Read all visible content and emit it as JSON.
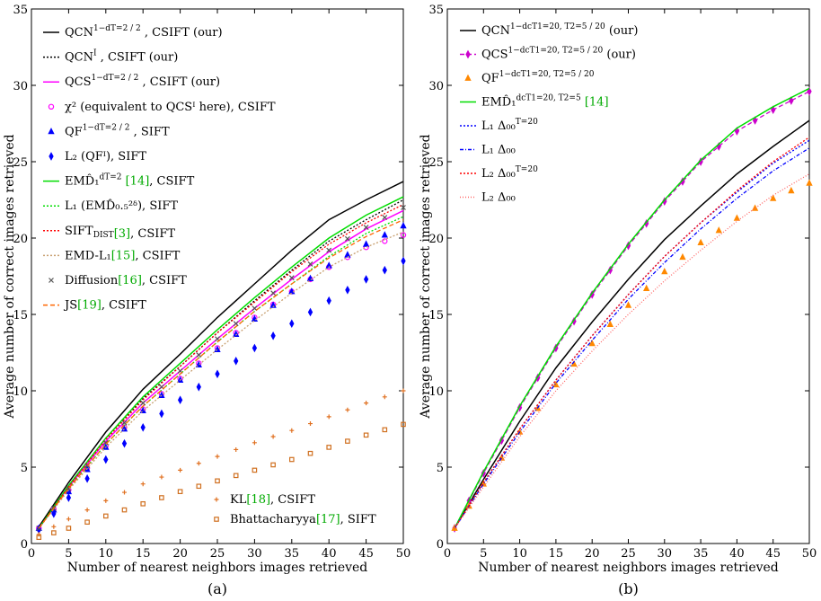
{
  "chart_data": [
    {
      "type": "line",
      "panel_label": "(a)",
      "xlabel": "Number of nearest neighbors images retrieved",
      "ylabel": "Average number of correct images retrieved",
      "xlim": [
        0,
        50
      ],
      "ylim": [
        0,
        35
      ],
      "xticks": [
        0,
        5,
        10,
        15,
        20,
        25,
        30,
        35,
        40,
        45,
        50
      ],
      "yticks": [
        0,
        5,
        10,
        15,
        20,
        25,
        30,
        35
      ],
      "grid": false,
      "legend_placement": "top-left",
      "x": [
        1,
        5,
        10,
        15,
        20,
        25,
        30,
        35,
        40,
        45,
        50
      ],
      "series": [
        {
          "name": "QCN^{1-d_{T=2}/2}, CSIFT (our)",
          "legend": {
            "main": "QCN",
            "sup": "1−",
            "frac": "dT=2 / 2",
            "tail": ", CSIFT (our)",
            "cite": ""
          },
          "color": "#000000",
          "style": "solid",
          "marker": "none",
          "values": [
            1.1,
            4.0,
            7.3,
            10.1,
            12.4,
            14.8,
            17.0,
            19.2,
            21.2,
            22.5,
            23.7
          ]
        },
        {
          "name": "QCN^I, CSIFT (our)",
          "legend": {
            "main": "QCN",
            "sup": "I",
            "frac": "",
            "tail": ", CSIFT (our)",
            "cite": ""
          },
          "color": "#000000",
          "style": "dotted",
          "marker": "none",
          "values": [
            1.0,
            3.8,
            6.9,
            9.5,
            11.6,
            13.8,
            15.9,
            17.9,
            19.8,
            21.2,
            22.5
          ]
        },
        {
          "name": "QCS^{1-d_{T=2}/2}, CSIFT (our)",
          "legend": {
            "main": "QCS",
            "sup": "1−",
            "frac": "dT=2 / 2",
            "tail": ", CSIFT (our)",
            "cite": ""
          },
          "color": "#ff00ff",
          "style": "solid",
          "marker": "none",
          "values": [
            1.0,
            3.7,
            6.7,
            9.2,
            11.3,
            13.4,
            15.4,
            17.3,
            19.1,
            20.6,
            21.8
          ]
        },
        {
          "name": "χ² (equivalent to QCS^I here), CSIFT",
          "legend": {
            "main": "χ²",
            "sup": "",
            "frac": "",
            "tail": "   (equivalent to QCSᴵ here), CSIFT",
            "cite": ""
          },
          "color": "#ff00ff",
          "style": "none",
          "marker": "circle",
          "values": [
            1.0,
            3.5,
            6.4,
            8.8,
            10.8,
            12.8,
            14.8,
            16.5,
            18.1,
            19.4,
            20.2
          ]
        },
        {
          "name": "QF^{1-d_{T=2}/2}, SIFT",
          "legend": {
            "main": "QF",
            "sup": "1−",
            "frac": "dT=2 / 2",
            "tail": ", SIFT",
            "cite": ""
          },
          "color": "#0000ff",
          "style": "none",
          "marker": "triangle",
          "values": [
            1.0,
            3.4,
            6.3,
            8.7,
            10.7,
            12.7,
            14.7,
            16.5,
            18.2,
            19.6,
            20.8
          ]
        },
        {
          "name": "L_2 (QF^I), SIFT",
          "legend": {
            "main": "L₂",
            "sup": "",
            "frac": "",
            "tail": "   (QFᴵ), SIFT",
            "cite": ""
          },
          "color": "#0000ff",
          "style": "none",
          "marker": "diamond",
          "values": [
            0.9,
            3.0,
            5.5,
            7.6,
            9.4,
            11.1,
            12.8,
            14.4,
            15.9,
            17.3,
            18.5
          ]
        },
        {
          "name": "EMD_1^{d_{T=2}} [14], CSIFT",
          "legend": {
            "main": "EMD̂₁",
            "sup": "dT=2",
            "frac": "",
            "tail": " ",
            "cite": "[14]",
            "tail2": ", CSIFT"
          },
          "color": "#00dd00",
          "style": "solid",
          "marker": "none",
          "values": [
            1.0,
            3.8,
            6.9,
            9.6,
            11.8,
            14.0,
            16.1,
            18.1,
            20.0,
            21.5,
            22.7
          ]
        },
        {
          "name": "L_1 (EMD_{0.5}^{2δ}), SIFT",
          "legend": {
            "main": "L₁",
            "sup": "",
            "frac": "",
            "tail": "   (EMD̂₀.₅²ᵟ), SIFT",
            "cite": ""
          },
          "color": "#00dd00",
          "style": "dotted",
          "marker": "none",
          "values": [
            1.0,
            3.6,
            6.5,
            9.0,
            11.1,
            13.2,
            15.2,
            17.0,
            18.8,
            20.3,
            21.4
          ]
        },
        {
          "name": "SIFT_DIST [3], CSIFT",
          "legend": {
            "main": "SIFT",
            "sub": "DIST",
            "sup": "",
            "frac": "",
            "tail": "",
            "cite": "[3]",
            "tail2": ", CSIFT"
          },
          "color": "#ff0000",
          "style": "dotted",
          "marker": "none",
          "values": [
            1.0,
            3.7,
            6.8,
            9.4,
            11.6,
            13.8,
            15.8,
            17.8,
            19.6,
            21.0,
            22.2
          ]
        },
        {
          "name": "EMD-L_1 [15], CSIFT",
          "legend": {
            "main": "EMD-L₁",
            "sup": "",
            "frac": "",
            "tail": "",
            "cite": "[15]",
            "tail2": ", CSIFT"
          },
          "color": "#c8a070",
          "style": "dotted",
          "marker": "none",
          "values": [
            1.0,
            3.5,
            6.3,
            8.7,
            10.7,
            12.7,
            14.6,
            16.4,
            18.1,
            19.4,
            20.4
          ]
        },
        {
          "name": "Diffusion [16], CSIFT",
          "legend": {
            "main": "Diffusion",
            "sup": "",
            "frac": "",
            "tail": "",
            "cite": "[16]",
            "tail2": ", CSIFT"
          },
          "color": "#555555",
          "style": "none",
          "marker": "x",
          "values": [
            1.0,
            3.6,
            6.6,
            9.2,
            11.3,
            13.4,
            15.4,
            17.4,
            19.2,
            20.7,
            22.0
          ]
        },
        {
          "name": "JS [19], CSIFT",
          "legend": {
            "main": "JS",
            "sup": "",
            "frac": "",
            "tail": "",
            "cite": "[19]",
            "tail2": ", CSIFT"
          },
          "color": "#ff6600",
          "style": "dashed",
          "marker": "none",
          "values": [
            1.0,
            3.6,
            6.5,
            9.0,
            11.1,
            13.2,
            15.2,
            17.0,
            18.7,
            20.1,
            21.2
          ]
        },
        {
          "name": "KL [18], CSIFT",
          "legend": {
            "main": "KL",
            "sup": "",
            "frac": "",
            "tail": "",
            "cite": "[18]",
            "tail2": ", CSIFT"
          },
          "color": "#e07020",
          "style": "none",
          "marker": "plus",
          "values": [
            0.6,
            1.6,
            2.8,
            3.9,
            4.8,
            5.7,
            6.6,
            7.4,
            8.3,
            9.2,
            10.0
          ]
        },
        {
          "name": "Bhattacharyya [17], SIFT",
          "legend": {
            "main": "Bhattacharyya",
            "sup": "",
            "frac": "",
            "tail": "",
            "cite": "[17]",
            "tail2": ", SIFT"
          },
          "color": "#d07020",
          "style": "none",
          "marker": "square",
          "values": [
            0.4,
            1.0,
            1.8,
            2.6,
            3.4,
            4.1,
            4.8,
            5.5,
            6.3,
            7.1,
            7.8
          ]
        }
      ]
    },
    {
      "type": "line",
      "panel_label": "(b)",
      "xlabel": "Number of nearest neighbors images retrieved",
      "ylabel": "Average number of correct images retrieved",
      "xlim": [
        0,
        50
      ],
      "ylim": [
        0,
        35
      ],
      "xticks": [
        0,
        5,
        10,
        15,
        20,
        25,
        30,
        35,
        40,
        45,
        50
      ],
      "yticks": [
        0,
        5,
        10,
        15,
        20,
        25,
        30,
        35
      ],
      "grid": false,
      "legend_placement": "top-left",
      "x": [
        1,
        5,
        10,
        15,
        20,
        25,
        30,
        35,
        40,
        45,
        50
      ],
      "series": [
        {
          "name": "QCN^{1-dc_{T1=20,T2=5}/20} (our)",
          "legend": {
            "main": "QCN",
            "sup": "1−",
            "frac": "dcT1=20, T2=5 / 20",
            "tail": " (our)",
            "cite": ""
          },
          "color": "#000000",
          "style": "solid",
          "marker": "none",
          "values": [
            1.0,
            4.2,
            8.0,
            11.5,
            14.5,
            17.3,
            19.9,
            22.1,
            24.2,
            26.0,
            27.7
          ]
        },
        {
          "name": "QCS^{1-dc_{T1=20,T2=5}/20} (our)",
          "legend": {
            "main": "QCS",
            "sup": "1−",
            "frac": "dcT1=20, T2=5 / 20",
            "tail": " (our)",
            "cite": ""
          },
          "color": "#cc00cc",
          "style": "dashed",
          "marker": "diamond",
          "values": [
            1.0,
            4.6,
            8.9,
            12.8,
            16.3,
            19.5,
            22.4,
            25.0,
            27.0,
            28.4,
            29.6
          ]
        },
        {
          "name": "QF^{1-dc_{T1=20,T2=5}/20}",
          "legend": {
            "main": "QF",
            "sup": "1−",
            "frac": "dcT1=20, T2=5 / 20",
            "tail": "",
            "cite": ""
          },
          "color": "#ff8800",
          "style": "none",
          "marker": "triangle",
          "values": [
            1.0,
            3.9,
            7.3,
            10.4,
            13.1,
            15.6,
            17.8,
            19.7,
            21.3,
            22.6,
            23.6
          ]
        },
        {
          "name": "EMD_1^{dc_{T1=20,T2=5}} [14]",
          "legend": {
            "main": "EMD̂₁",
            "sup": "dcT1=20, T2=5",
            "frac": "",
            "tail": " ",
            "cite": "[14]",
            "tail2": ""
          },
          "color": "#00dd00",
          "style": "solid",
          "marker": "none",
          "values": [
            1.0,
            4.7,
            9.0,
            12.9,
            16.4,
            19.6,
            22.5,
            25.1,
            27.2,
            28.6,
            29.8
          ]
        },
        {
          "name": "L_1 Δ_00^{T=20}",
          "legend": {
            "main": "L₁ Δ₀₀",
            "sup": "T=20",
            "frac": "",
            "tail": "",
            "cite": ""
          },
          "color": "#0000ff",
          "style": "dotted",
          "marker": "none",
          "values": [
            1.0,
            4.0,
            7.5,
            10.7,
            13.6,
            16.3,
            18.8,
            21.0,
            23.0,
            24.9,
            26.4
          ]
        },
        {
          "name": "L_1 Δ_00",
          "legend": {
            "main": "L₁ Δ₀₀",
            "sup": "",
            "frac": "",
            "tail": "",
            "cite": ""
          },
          "color": "#0000ff",
          "style": "dashdot",
          "marker": "none",
          "values": [
            1.0,
            3.9,
            7.3,
            10.5,
            13.3,
            16.0,
            18.4,
            20.6,
            22.6,
            24.4,
            25.9
          ]
        },
        {
          "name": "L_2 Δ_00^{T=20}",
          "legend": {
            "main": "L₂ Δ₀₀",
            "sup": "T=20",
            "frac": "",
            "tail": "",
            "cite": ""
          },
          "color": "#ff0000",
          "style": "dotted",
          "marker": "none",
          "values": [
            1.0,
            4.0,
            7.5,
            10.7,
            13.6,
            16.3,
            18.8,
            21.0,
            23.1,
            25.0,
            26.6
          ]
        },
        {
          "name": "L_2 Δ_00",
          "legend": {
            "main": "L₂ Δ₀₀",
            "sup": "",
            "frac": "",
            "tail": "",
            "cite": ""
          },
          "color": "#ff6666",
          "style": "dotted-thin",
          "marker": "none",
          "values": [
            1.0,
            3.7,
            7.0,
            10.0,
            12.6,
            15.0,
            17.2,
            19.2,
            21.1,
            22.8,
            24.2
          ]
        }
      ]
    }
  ]
}
